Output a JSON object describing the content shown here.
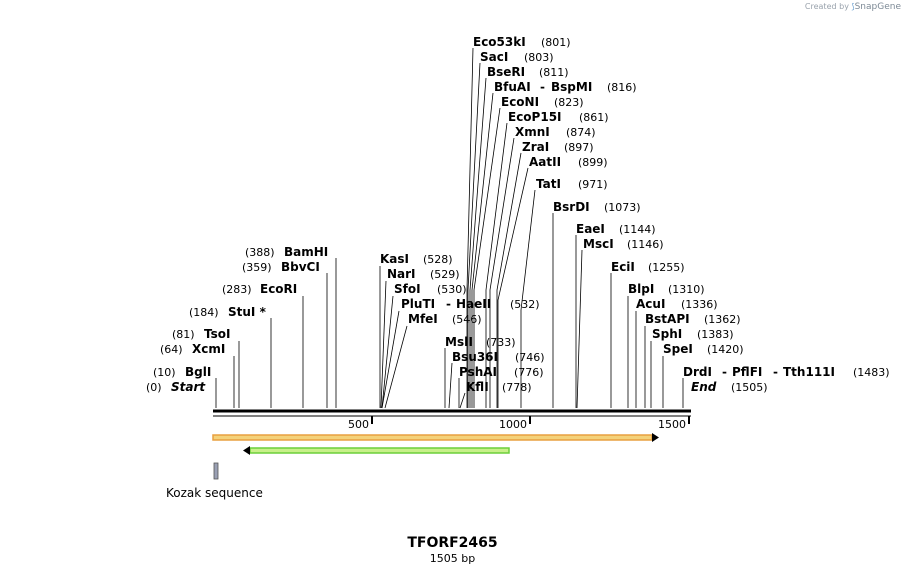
{
  "credit": {
    "prefix": "Created by",
    "brand": "SnapGene"
  },
  "map": {
    "name": "TFORF2465",
    "length_label": "1505 bp",
    "ticks": [
      "500",
      "1000",
      "1500"
    ],
    "feature_label": "Kozak sequence",
    "sites": [
      {
        "label": "Start",
        "pos": "(0)",
        "italic": true
      },
      {
        "label": "BglI",
        "pos": "(10)"
      },
      {
        "label": "XcmI",
        "pos": "(64)"
      },
      {
        "label": "TsoI",
        "pos": "(81)"
      },
      {
        "label": "StuI *",
        "pos": "(184)"
      },
      {
        "label": "EcoRI",
        "pos": "(283)"
      },
      {
        "label": "BbvCI",
        "pos": "(359)"
      },
      {
        "label": "BamHI",
        "pos": "(388)"
      },
      {
        "label": "KasI",
        "pos": "(528)"
      },
      {
        "label": "NarI",
        "pos": "(529)"
      },
      {
        "label": "SfoI",
        "pos": "(530)"
      },
      {
        "label": "PluTI",
        "label2": "HaeII",
        "pos": "(532)"
      },
      {
        "label": "MfeI",
        "pos": "(546)"
      },
      {
        "label": "MslI",
        "pos": "(733)"
      },
      {
        "label": "Bsu36I",
        "pos": "(746)"
      },
      {
        "label": "PshAI",
        "pos": "(776)"
      },
      {
        "label": "KflI",
        "pos": "(778)"
      },
      {
        "label": "Eco53kI",
        "pos": "(801)"
      },
      {
        "label": "SacI",
        "pos": "(803)"
      },
      {
        "label": "BseRI",
        "pos": "(811)"
      },
      {
        "label": "BfuAI",
        "label2": "BspMI",
        "pos": "(816)"
      },
      {
        "label": "EcoNI",
        "pos": "(823)"
      },
      {
        "label": "EcoP15I",
        "pos": "(861)"
      },
      {
        "label": "XmnI",
        "pos": "(874)"
      },
      {
        "label": "ZraI",
        "pos": "(897)"
      },
      {
        "label": "AatII",
        "pos": "(899)"
      },
      {
        "label": "TatI",
        "pos": "(971)"
      },
      {
        "label": "BsrDI",
        "pos": "(1073)"
      },
      {
        "label": "EaeI",
        "pos": "(1144)"
      },
      {
        "label": "MscI",
        "pos": "(1146)"
      },
      {
        "label": "EciI",
        "pos": "(1255)"
      },
      {
        "label": "BlpI",
        "pos": "(1310)"
      },
      {
        "label": "AcuI",
        "pos": "(1336)"
      },
      {
        "label": "BstAPI",
        "pos": "(1362)"
      },
      {
        "label": "SphI",
        "pos": "(1383)"
      },
      {
        "label": "SpeI",
        "pos": "(1420)"
      },
      {
        "label": "DrdI",
        "label2": "PflFI",
        "label3": "Tth111I",
        "pos": "(1483)"
      },
      {
        "label": "End",
        "pos": "(1505)",
        "italic": true
      }
    ],
    "colors": {
      "orf_outer": "#e8a040",
      "orf_inner": "#f4d27a",
      "orf2_outer": "#6ccf3a",
      "orf2_inner": "#c8f08a",
      "feature": "#9aa0b4"
    }
  }
}
